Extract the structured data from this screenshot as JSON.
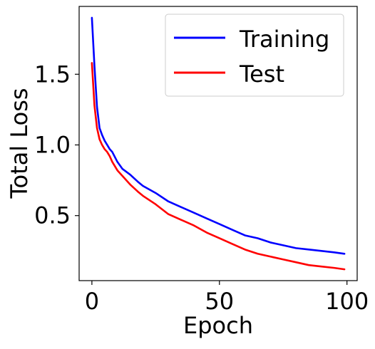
{
  "chart_data": {
    "type": "line",
    "title": "",
    "xlabel": "Epoch",
    "ylabel": "Total Loss",
    "xlim": [
      -5,
      104
    ],
    "ylim": [
      0.04,
      1.98
    ],
    "xticks": [
      0,
      50,
      100
    ],
    "xtick_labels": [
      "0",
      "50",
      "100"
    ],
    "yticks": [
      0.5,
      1.0,
      1.5
    ],
    "ytick_labels": [
      "0.5",
      "1.0",
      "1.5"
    ],
    "grid": false,
    "legend": {
      "placement": "top-right",
      "entries": [
        "Training",
        "Test"
      ]
    },
    "series": [
      {
        "name": "Training",
        "color": "#0000ff",
        "x": [
          0,
          1,
          2,
          3,
          4,
          5,
          6,
          7,
          8,
          10,
          12,
          15,
          18,
          20,
          25,
          30,
          35,
          40,
          45,
          50,
          55,
          60,
          65,
          70,
          75,
          80,
          85,
          90,
          95,
          99
        ],
        "y": [
          1.9,
          1.56,
          1.27,
          1.12,
          1.07,
          1.03,
          1.0,
          0.97,
          0.95,
          0.88,
          0.83,
          0.79,
          0.74,
          0.71,
          0.66,
          0.6,
          0.56,
          0.52,
          0.48,
          0.44,
          0.4,
          0.36,
          0.34,
          0.31,
          0.29,
          0.27,
          0.26,
          0.25,
          0.24,
          0.23
        ]
      },
      {
        "name": "Test",
        "color": "#ff0000",
        "x": [
          0,
          1,
          2,
          3,
          4,
          5,
          6,
          7,
          8,
          10,
          12,
          15,
          18,
          20,
          25,
          30,
          35,
          40,
          45,
          50,
          55,
          60,
          65,
          70,
          75,
          80,
          85,
          90,
          95,
          99
        ],
        "y": [
          1.58,
          1.28,
          1.12,
          1.04,
          1.0,
          0.97,
          0.95,
          0.92,
          0.88,
          0.82,
          0.78,
          0.72,
          0.67,
          0.64,
          0.58,
          0.51,
          0.47,
          0.43,
          0.38,
          0.34,
          0.3,
          0.26,
          0.23,
          0.21,
          0.19,
          0.17,
          0.15,
          0.14,
          0.13,
          0.12
        ]
      }
    ]
  }
}
